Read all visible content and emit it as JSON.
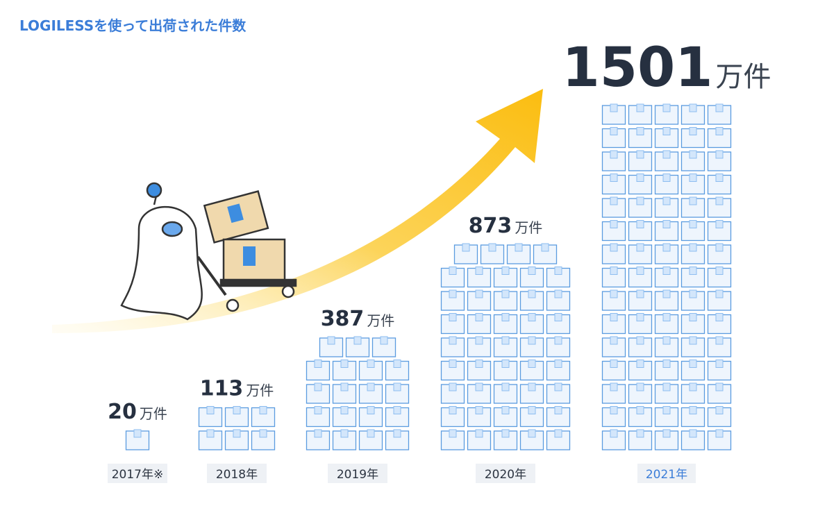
{
  "chart_data": {
    "type": "pictogram",
    "title": "LOGILESSを使って出荷された件数",
    "categories": [
      "2017年※",
      "2018年",
      "2019年",
      "2020年",
      "2021年"
    ],
    "values": [
      20,
      113,
      387,
      873,
      1501
    ],
    "unit": "万件",
    "color": "#5a9be0"
  }
}
